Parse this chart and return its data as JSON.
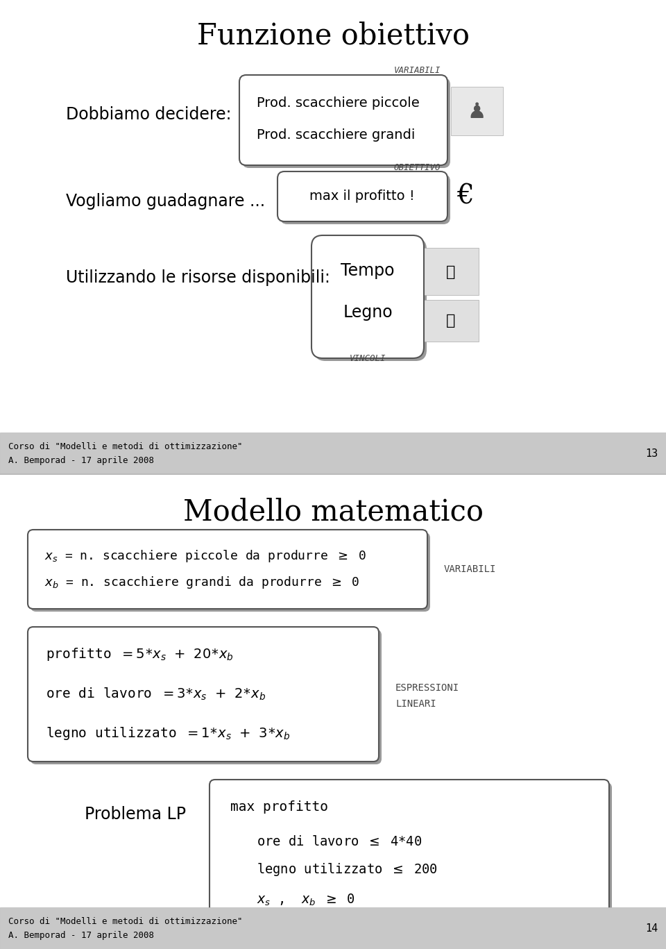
{
  "bg_color": "#ffffff",
  "slide1": {
    "title": "Funzione obiettivo",
    "line1_left": "Dobbiamo decidere:",
    "box1_line1": "Prod. scacchiere piccole",
    "box1_line2": "Prod. scacchiere grandi",
    "label_variabili": "VARIABILI",
    "line2_left": "Vogliamo guadagnare ...",
    "box2_text": "max il profitto !",
    "label_obiettivo": "OBIETTIVO",
    "euro_symbol": "€",
    "line3_left": "Utilizzando le risorse disponibili:",
    "box3_line1": "Tempo",
    "box3_line2": "Legno",
    "label_vincoli": "VINCOLI",
    "footer_line1": "Corso di \"Modelli e metodi di ottimizzazione\"",
    "footer_line2": "A. Bemporad - 17 aprile 2008",
    "page_num": "13"
  },
  "slide2": {
    "title": "Modello matematico",
    "footer_line1": "Corso di \"Modelli e metodi di ottimizzazione\"",
    "footer_line2": "A. Bemporad - 17 aprile 2008",
    "page_num": "14",
    "label_variabili": "VARIABILI",
    "label_espressioni1": "ESPRESSIONI",
    "label_espressioni2": "LINEARI",
    "lp_left": "Problema LP"
  },
  "divider_color": "#bbbbbb",
  "footer_bg": "#c8c8c8",
  "shadow_color": "#999999",
  "text_color": "#000000",
  "small_label_color": "#444444",
  "box_edge_color": "#555555"
}
